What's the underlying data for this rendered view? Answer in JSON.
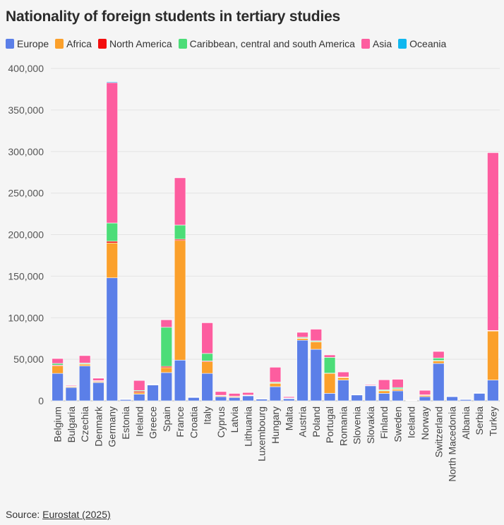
{
  "title": "Nationality of foreign students in tertiary studies",
  "source_label": "Source:",
  "source_link": "Eurostat (2025)",
  "chart_data": {
    "type": "bar",
    "stacked": true,
    "title": "Nationality of foreign students in tertiary studies",
    "xlabel": "",
    "ylabel": "",
    "ylim": [
      0,
      400000
    ],
    "yticks": [
      "0",
      "50,000",
      "100,000",
      "150,000",
      "200,000",
      "250,000",
      "300,000",
      "350,000",
      "400,000"
    ],
    "ytick_values": [
      0,
      50000,
      100000,
      150000,
      200000,
      250000,
      300000,
      350000,
      400000
    ],
    "grid": true,
    "legend_position": "top-left",
    "categories": [
      "Belgium",
      "Bulgaria",
      "Czechia",
      "Denmark",
      "Germany",
      "Estonia",
      "Ireland",
      "Greece",
      "Spain",
      "France",
      "Croatia",
      "Italy",
      "Cyprus",
      "Latvia",
      "Lithuania",
      "Luxembourg",
      "Hungary",
      "Malta",
      "Austria",
      "Poland",
      "Portugal",
      "Romania",
      "Slovenia",
      "Slovakia",
      "Finland",
      "Sweden",
      "Iceland",
      "Norway",
      "Switzerland",
      "North Macedonia",
      "Albania",
      "Serbia",
      "Turkey"
    ],
    "series": [
      {
        "name": "Europe",
        "color": "#5b7fe8",
        "values": [
          33000,
          16000,
          42000,
          22000,
          148000,
          1500,
          8000,
          19000,
          34000,
          49000,
          4000,
          33000,
          5000,
          4000,
          6000,
          2000,
          17000,
          2500,
          73000,
          62000,
          9000,
          25000,
          7000,
          18000,
          9000,
          12000,
          500,
          5000,
          45000,
          5000,
          1500,
          9000,
          25000
        ]
      },
      {
        "name": "Africa",
        "color": "#fba02b",
        "values": [
          9000,
          1000,
          2000,
          1000,
          42000,
          200,
          2000,
          500,
          6000,
          144000,
          300,
          14000,
          1000,
          1000,
          500,
          300,
          4000,
          500,
          2000,
          9000,
          24000,
          3000,
          300,
          500,
          3000,
          2000,
          100,
          1500,
          3000,
          200,
          200,
          500,
          59000
        ]
      },
      {
        "name": "North America",
        "color": "#f30d0d",
        "values": [
          1000,
          200,
          500,
          800,
          2000,
          200,
          1500,
          200,
          1500,
          1500,
          300,
          1000,
          200,
          200,
          200,
          100,
          500,
          200,
          500,
          300,
          300,
          200,
          100,
          100,
          300,
          500,
          100,
          200,
          500,
          100,
          50,
          100,
          200
        ]
      },
      {
        "name": "Caribbean, central and south America",
        "color": "#4cdd78",
        "values": [
          2000,
          500,
          1000,
          500,
          22000,
          200,
          1000,
          200,
          47000,
          17000,
          200,
          9000,
          500,
          300,
          300,
          100,
          1000,
          300,
          1000,
          1000,
          19000,
          500,
          100,
          100,
          1000,
          1500,
          100,
          500,
          3000,
          100,
          50,
          100,
          500
        ]
      },
      {
        "name": "Asia",
        "color": "#fd5d9f",
        "values": [
          6000,
          1000,
          9000,
          3000,
          169000,
          300,
          12000,
          500,
          9000,
          57000,
          300,
          37000,
          4500,
          3500,
          3000,
          300,
          18000,
          1500,
          6000,
          14000,
          3000,
          6000,
          200,
          1000,
          12000,
          10000,
          200,
          5500,
          8000,
          300,
          200,
          200,
          214000
        ]
      },
      {
        "name": "Oceania",
        "color": "#10b7ef",
        "values": [
          200,
          50,
          200,
          300,
          1000,
          50,
          200,
          50,
          300,
          300,
          50,
          300,
          50,
          50,
          50,
          50,
          100,
          100,
          200,
          100,
          100,
          50,
          50,
          50,
          200,
          300,
          50,
          200,
          300,
          50,
          50,
          50,
          100
        ]
      }
    ]
  }
}
